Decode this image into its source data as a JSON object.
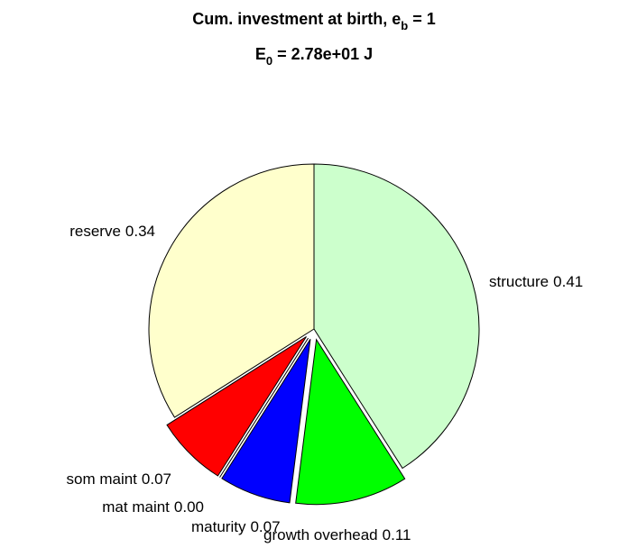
{
  "chart_data": {
    "type": "pie",
    "title": [
      "Cum. investment at birth, e",
      "b",
      " = 1"
    ],
    "subtitle": [
      "E",
      "0",
      " = 2.78e+01 J"
    ],
    "categories": [
      "structure",
      "growth overhead",
      "maturity",
      "mat maint",
      "som maint",
      "reserve"
    ],
    "values": [
      0.41,
      0.11,
      0.07,
      0,
      0.07,
      0.34
    ],
    "value_labels": [
      "0.41",
      "0.11",
      "0.07",
      "0.00",
      "0.07",
      "0.34"
    ],
    "colors": [
      "#ccffcc",
      "#00ff00",
      "#0000ff",
      "#ffffff",
      "#ff0000",
      "#ffffcc"
    ],
    "explode": [
      0,
      1,
      1,
      1,
      1,
      0
    ]
  }
}
